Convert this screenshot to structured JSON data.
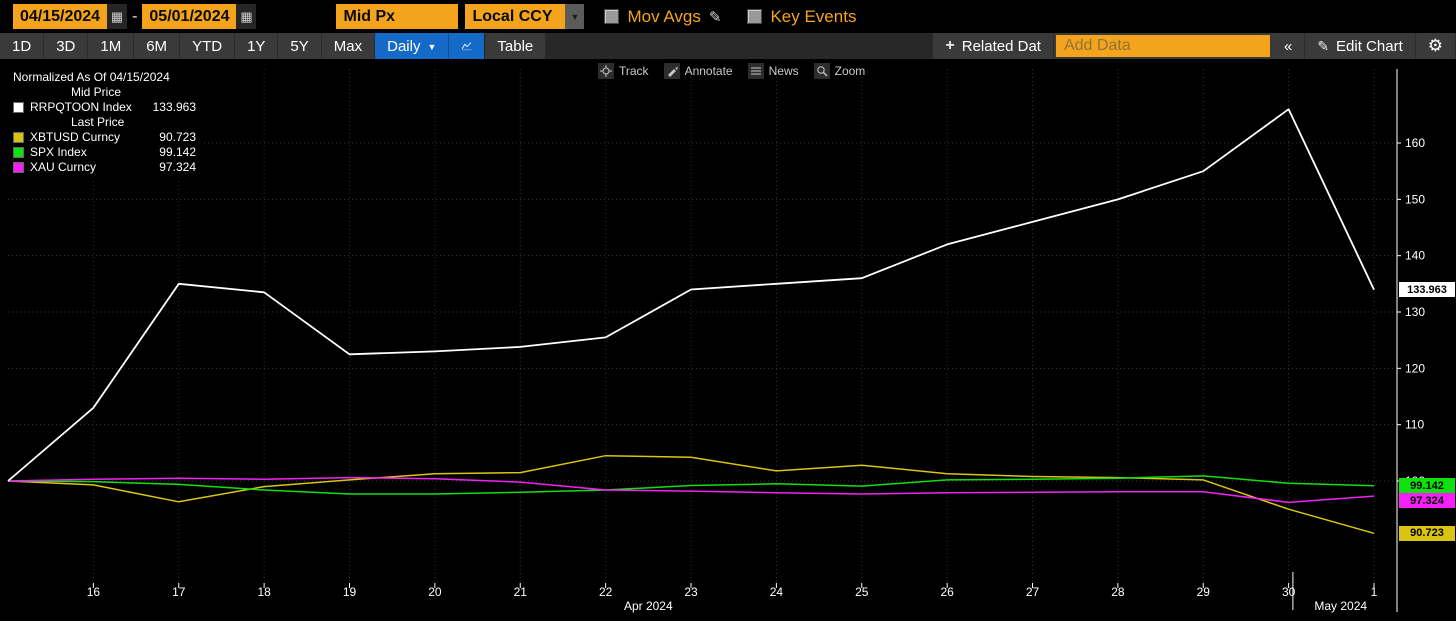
{
  "top_bar": {
    "start_date": "04/15/2024",
    "separator": "-",
    "end_date": "05/01/2024",
    "price_source": "Mid Px",
    "currency": "Local CCY",
    "mov_avgs_label": "Mov Avgs",
    "key_events_label": "Key Events"
  },
  "toolbar": {
    "periods": [
      "1D",
      "3D",
      "1M",
      "6M",
      "YTD",
      "1Y",
      "5Y",
      "Max"
    ],
    "frequency": "Daily",
    "table": "Table",
    "related_data": "Related Dat",
    "add_data_placeholder": "Add Data",
    "collapse": "«",
    "edit_chart": "Edit Chart"
  },
  "icons": {
    "calendar": "▦",
    "dropdown_arrow": "▼",
    "pencil": "✎",
    "plus": "+",
    "gear": "⚙"
  },
  "chart_tools": {
    "track": "Track",
    "annotate": "Annotate",
    "news": "News",
    "zoom": "Zoom"
  },
  "legend": {
    "title": "Normalized As Of 04/15/2024",
    "groups": [
      {
        "label": "Mid Price",
        "items": [
          {
            "name": "RRPQTOON Index",
            "value": "133.963",
            "color": "#ffffff"
          }
        ]
      },
      {
        "label": "Last Price",
        "items": [
          {
            "name": "XBTUSD Curncy",
            "value": "90.723",
            "color": "#d9c511"
          },
          {
            "name": "SPX Index",
            "value": "99.142",
            "color": "#10e010"
          },
          {
            "name": "XAU Curncy",
            "value": "97.324",
            "color": "#f520f5"
          }
        ]
      }
    ]
  },
  "chart_data": {
    "type": "line",
    "title": "Normalized As Of 04/15/2024",
    "x_dates": [
      "04/15",
      "04/16",
      "04/17",
      "04/18",
      "04/19",
      "04/20",
      "04/21",
      "04/22",
      "04/23",
      "04/24",
      "04/25",
      "04/26",
      "04/27",
      "04/28",
      "04/29",
      "04/30",
      "05/01"
    ],
    "x_tick_labels": [
      "16",
      "17",
      "18",
      "19",
      "20",
      "21",
      "22",
      "23",
      "24",
      "25",
      "26",
      "27",
      "28",
      "29",
      "30",
      "1"
    ],
    "month_labels": [
      {
        "label": "Apr 2024",
        "index": 7.5
      },
      {
        "label": "May 2024",
        "index": 15.61
      }
    ],
    "month_separator_index": 15.05,
    "yticks": [
      100,
      110,
      120,
      130,
      140,
      150,
      160
    ],
    "ylim": [
      82,
      172
    ],
    "grid": "dotted",
    "legend_position": "top-left",
    "series": [
      {
        "name": "XBTUSD Curncy",
        "price_type": "Last Price",
        "color": "#d9c511",
        "last_label": "90.723",
        "values": [
          100,
          99.3,
          96.3,
          99,
          100.2,
          101.3,
          101.5,
          104.5,
          104.2,
          101.8,
          102.8,
          101.3,
          100.8,
          100.6,
          100.2,
          95,
          90.723
        ]
      },
      {
        "name": "SPX Index",
        "price_type": "Last Price",
        "color": "#10e010",
        "last_label": "99.142",
        "values": [
          100,
          99.9,
          99.4,
          98.4,
          97.7,
          97.7,
          98,
          98.4,
          99.2,
          99.5,
          99.1,
          100.2,
          100.3,
          100.5,
          100.9,
          99.6,
          99.142
        ]
      },
      {
        "name": "XAU Curncy",
        "price_type": "Last Price",
        "color": "#f520f5",
        "last_label": "97.324",
        "values": [
          100,
          100.3,
          100.5,
          100.3,
          100.6,
          100.4,
          99.8,
          98.4,
          98.2,
          97.9,
          97.7,
          97.9,
          98,
          98.1,
          98.1,
          96.2,
          97.324
        ]
      },
      {
        "name": "RRPQTOON Index",
        "price_type": "Mid Price",
        "color": "#ffffff",
        "last_label": "133.963",
        "values": [
          100,
          113,
          135,
          133.5,
          122.5,
          123,
          123.8,
          125.5,
          134,
          135,
          136,
          142,
          146,
          150,
          155,
          166,
          133.963
        ]
      }
    ]
  }
}
